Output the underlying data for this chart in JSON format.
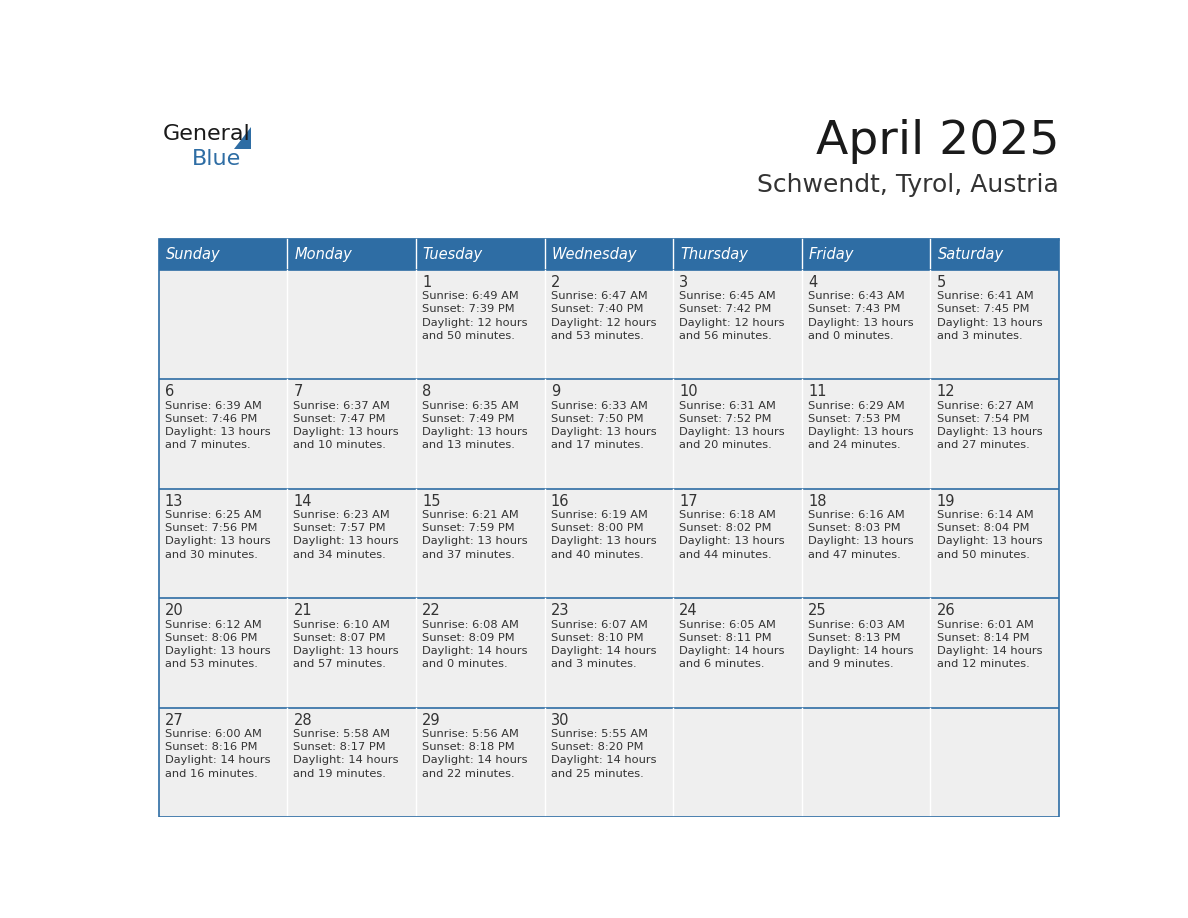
{
  "title": "April 2025",
  "subtitle": "Schwendt, Tyrol, Austria",
  "header_bg_color": "#2E6DA4",
  "header_text_color": "#FFFFFF",
  "cell_bg_color": "#EFEFEF",
  "border_color": "#2E6DA4",
  "text_color": "#333333",
  "day_headers": [
    "Sunday",
    "Monday",
    "Tuesday",
    "Wednesday",
    "Thursday",
    "Friday",
    "Saturday"
  ],
  "weeks": [
    [
      {
        "day": "",
        "text": ""
      },
      {
        "day": "",
        "text": ""
      },
      {
        "day": "1",
        "text": "Sunrise: 6:49 AM\nSunset: 7:39 PM\nDaylight: 12 hours\nand 50 minutes."
      },
      {
        "day": "2",
        "text": "Sunrise: 6:47 AM\nSunset: 7:40 PM\nDaylight: 12 hours\nand 53 minutes."
      },
      {
        "day": "3",
        "text": "Sunrise: 6:45 AM\nSunset: 7:42 PM\nDaylight: 12 hours\nand 56 minutes."
      },
      {
        "day": "4",
        "text": "Sunrise: 6:43 AM\nSunset: 7:43 PM\nDaylight: 13 hours\nand 0 minutes."
      },
      {
        "day": "5",
        "text": "Sunrise: 6:41 AM\nSunset: 7:45 PM\nDaylight: 13 hours\nand 3 minutes."
      }
    ],
    [
      {
        "day": "6",
        "text": "Sunrise: 6:39 AM\nSunset: 7:46 PM\nDaylight: 13 hours\nand 7 minutes."
      },
      {
        "day": "7",
        "text": "Sunrise: 6:37 AM\nSunset: 7:47 PM\nDaylight: 13 hours\nand 10 minutes."
      },
      {
        "day": "8",
        "text": "Sunrise: 6:35 AM\nSunset: 7:49 PM\nDaylight: 13 hours\nand 13 minutes."
      },
      {
        "day": "9",
        "text": "Sunrise: 6:33 AM\nSunset: 7:50 PM\nDaylight: 13 hours\nand 17 minutes."
      },
      {
        "day": "10",
        "text": "Sunrise: 6:31 AM\nSunset: 7:52 PM\nDaylight: 13 hours\nand 20 minutes."
      },
      {
        "day": "11",
        "text": "Sunrise: 6:29 AM\nSunset: 7:53 PM\nDaylight: 13 hours\nand 24 minutes."
      },
      {
        "day": "12",
        "text": "Sunrise: 6:27 AM\nSunset: 7:54 PM\nDaylight: 13 hours\nand 27 minutes."
      }
    ],
    [
      {
        "day": "13",
        "text": "Sunrise: 6:25 AM\nSunset: 7:56 PM\nDaylight: 13 hours\nand 30 minutes."
      },
      {
        "day": "14",
        "text": "Sunrise: 6:23 AM\nSunset: 7:57 PM\nDaylight: 13 hours\nand 34 minutes."
      },
      {
        "day": "15",
        "text": "Sunrise: 6:21 AM\nSunset: 7:59 PM\nDaylight: 13 hours\nand 37 minutes."
      },
      {
        "day": "16",
        "text": "Sunrise: 6:19 AM\nSunset: 8:00 PM\nDaylight: 13 hours\nand 40 minutes."
      },
      {
        "day": "17",
        "text": "Sunrise: 6:18 AM\nSunset: 8:02 PM\nDaylight: 13 hours\nand 44 minutes."
      },
      {
        "day": "18",
        "text": "Sunrise: 6:16 AM\nSunset: 8:03 PM\nDaylight: 13 hours\nand 47 minutes."
      },
      {
        "day": "19",
        "text": "Sunrise: 6:14 AM\nSunset: 8:04 PM\nDaylight: 13 hours\nand 50 minutes."
      }
    ],
    [
      {
        "day": "20",
        "text": "Sunrise: 6:12 AM\nSunset: 8:06 PM\nDaylight: 13 hours\nand 53 minutes."
      },
      {
        "day": "21",
        "text": "Sunrise: 6:10 AM\nSunset: 8:07 PM\nDaylight: 13 hours\nand 57 minutes."
      },
      {
        "day": "22",
        "text": "Sunrise: 6:08 AM\nSunset: 8:09 PM\nDaylight: 14 hours\nand 0 minutes."
      },
      {
        "day": "23",
        "text": "Sunrise: 6:07 AM\nSunset: 8:10 PM\nDaylight: 14 hours\nand 3 minutes."
      },
      {
        "day": "24",
        "text": "Sunrise: 6:05 AM\nSunset: 8:11 PM\nDaylight: 14 hours\nand 6 minutes."
      },
      {
        "day": "25",
        "text": "Sunrise: 6:03 AM\nSunset: 8:13 PM\nDaylight: 14 hours\nand 9 minutes."
      },
      {
        "day": "26",
        "text": "Sunrise: 6:01 AM\nSunset: 8:14 PM\nDaylight: 14 hours\nand 12 minutes."
      }
    ],
    [
      {
        "day": "27",
        "text": "Sunrise: 6:00 AM\nSunset: 8:16 PM\nDaylight: 14 hours\nand 16 minutes."
      },
      {
        "day": "28",
        "text": "Sunrise: 5:58 AM\nSunset: 8:17 PM\nDaylight: 14 hours\nand 19 minutes."
      },
      {
        "day": "29",
        "text": "Sunrise: 5:56 AM\nSunset: 8:18 PM\nDaylight: 14 hours\nand 22 minutes."
      },
      {
        "day": "30",
        "text": "Sunrise: 5:55 AM\nSunset: 8:20 PM\nDaylight: 14 hours\nand 25 minutes."
      },
      {
        "day": "",
        "text": ""
      },
      {
        "day": "",
        "text": ""
      },
      {
        "day": "",
        "text": ""
      }
    ]
  ]
}
